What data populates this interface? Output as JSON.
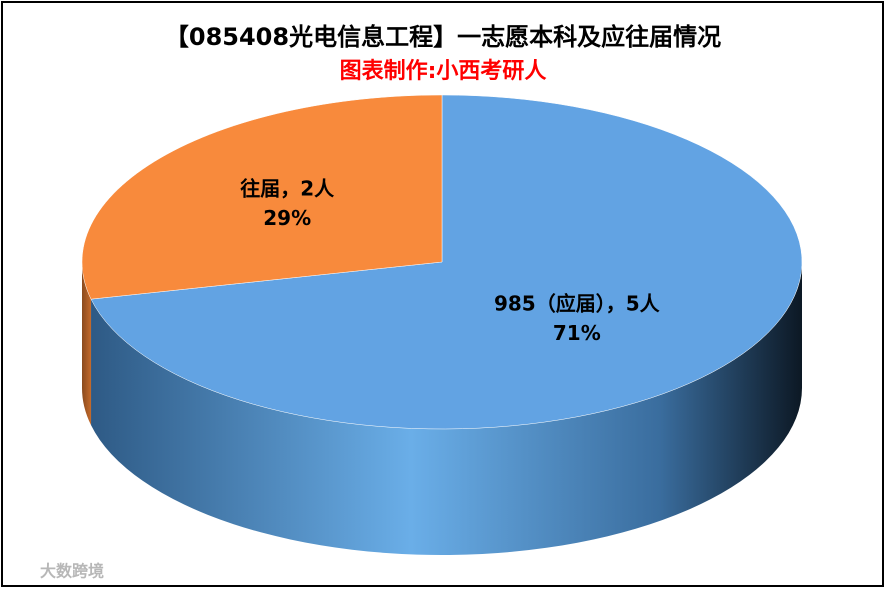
{
  "chart_data": {
    "type": "pie",
    "title": "【085408光电信息工程】一志愿本科及应往届情况",
    "subtitle": "图表制作:小西考研人",
    "categories": [
      "985（应届）",
      "往届"
    ],
    "separator": "，",
    "values": [
      5,
      2
    ],
    "value_labels": [
      "5人",
      "2人"
    ],
    "percents": [
      71,
      29
    ],
    "percent_labels": [
      "71%",
      "29%"
    ],
    "colors": [
      "#62a3e3",
      "#f88a3c"
    ],
    "watermark": "大数跨境"
  }
}
